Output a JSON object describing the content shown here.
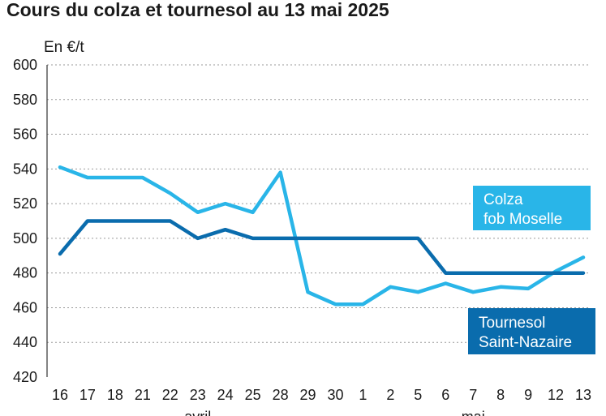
{
  "chart_data": {
    "type": "line",
    "title": "Cours du colza et tournesol au 13 mai 2025",
    "ylabel": "En €/t",
    "ylim": [
      420,
      600
    ],
    "yticks": [
      420,
      440,
      460,
      480,
      500,
      520,
      540,
      560,
      580,
      600
    ],
    "grid": true,
    "categories": [
      "16",
      "17",
      "18",
      "21",
      "22",
      "23",
      "24",
      "25",
      "28",
      "29",
      "30",
      "1",
      "2",
      "5",
      "6",
      "7",
      "8",
      "9",
      "12",
      "13"
    ],
    "month_labels": [
      {
        "label": "avril",
        "under_category": "23"
      },
      {
        "label": "mai",
        "under_category": "7"
      }
    ],
    "series": [
      {
        "name": "Colza fob Moselle",
        "name_lines": [
          "Colza",
          "fob Moselle"
        ],
        "color": "#29b5e8",
        "values": [
          541,
          535,
          535,
          535,
          526,
          515,
          520,
          515,
          538,
          469,
          462,
          462,
          472,
          469,
          474,
          469,
          472,
          471,
          481,
          489
        ]
      },
      {
        "name": "Tournesol Saint-Nazaire",
        "name_lines": [
          "Tournesol",
          "Saint-Nazaire"
        ],
        "color": "#0a6cad",
        "values": [
          491,
          510,
          510,
          510,
          510,
          500,
          505,
          500,
          500,
          500,
          500,
          500,
          500,
          500,
          480,
          480,
          480,
          480,
          480,
          480
        ]
      }
    ]
  }
}
